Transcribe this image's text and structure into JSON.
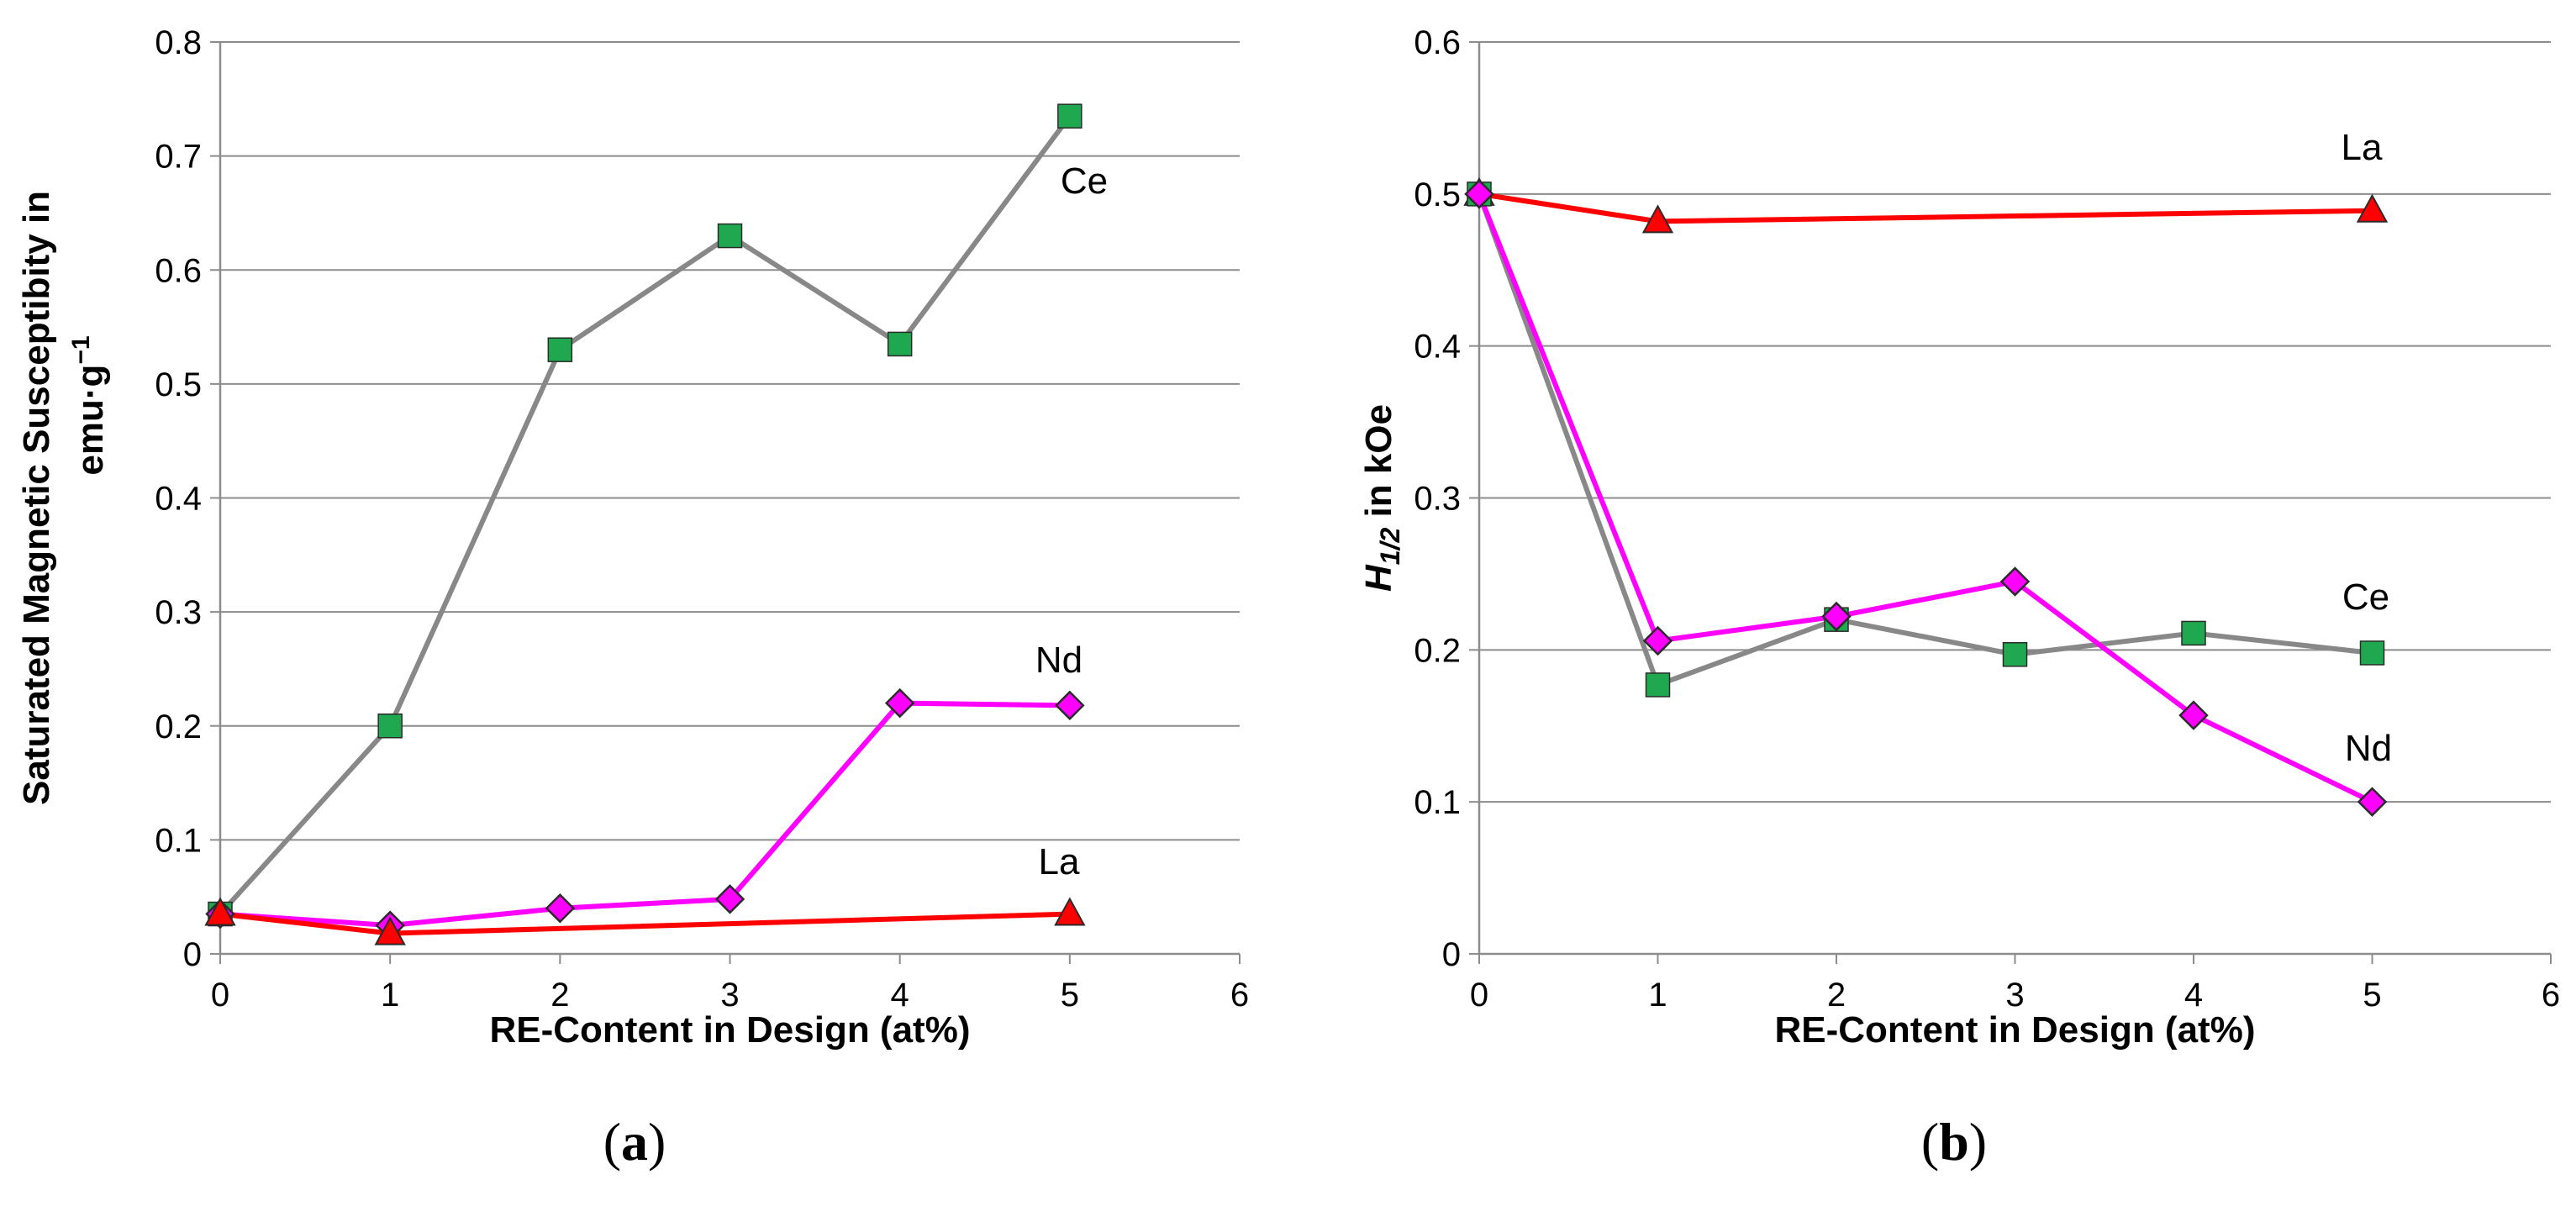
{
  "chart_data": [
    {
      "panel": "(a)",
      "type": "line",
      "xlabel": "RE-Content in Design (at%)",
      "ylabel": "Saturated Magnetic Susceptibity in",
      "ylabel_unit": "emu·g",
      "ylabel_unit_sup": "−1",
      "xlim": [
        0,
        6
      ],
      "ylim": [
        0,
        0.8
      ],
      "xticks": [
        "0",
        "1",
        "2",
        "3",
        "4",
        "5",
        "6"
      ],
      "yticks": [
        "0",
        "0.1",
        "0.2",
        "0.3",
        "0.4",
        "0.5",
        "0.6",
        "0.7",
        "0.8"
      ],
      "grid": "horizontal",
      "series": [
        {
          "name": "Ce",
          "color": "#888888",
          "marker": "square",
          "marker_color": "#1fa84f",
          "x": [
            0,
            1,
            2,
            3,
            4,
            5
          ],
          "y": [
            0.035,
            0.2,
            0.53,
            0.63,
            0.535,
            0.735
          ]
        },
        {
          "name": "Nd",
          "color": "#ff00ff",
          "marker": "diamond",
          "marker_color": "#ff00ff",
          "x": [
            0,
            1,
            2,
            3,
            4,
            5
          ],
          "y": [
            0.035,
            0.025,
            0.04,
            0.048,
            0.22,
            0.218
          ]
        },
        {
          "name": "La",
          "color": "#ff0000",
          "marker": "triangle",
          "marker_color": "#ff0000",
          "x": [
            0,
            1,
            5
          ],
          "y": [
            0.035,
            0.018,
            0.035
          ]
        }
      ]
    },
    {
      "panel": "(b)",
      "type": "line",
      "xlabel": "RE-Content in Design (at%)",
      "ylabel": "H",
      "ylabel_sub": "1/2",
      "ylabel_rest": " in kOe",
      "xlim": [
        0,
        6
      ],
      "ylim": [
        0,
        0.6
      ],
      "xticks": [
        "0",
        "1",
        "2",
        "3",
        "4",
        "5",
        "6"
      ],
      "yticks": [
        "0",
        "0.1",
        "0.2",
        "0.3",
        "0.4",
        "0.5",
        "0.6"
      ],
      "grid": "horizontal",
      "series": [
        {
          "name": "La",
          "color": "#ff0000",
          "marker": "triangle",
          "marker_color": "#ff0000",
          "x": [
            0,
            1,
            5
          ],
          "y": [
            0.5,
            0.482,
            0.489
          ]
        },
        {
          "name": "Ce",
          "color": "#888888",
          "marker": "square",
          "marker_color": "#1fa84f",
          "x": [
            0,
            1,
            2,
            3,
            4,
            5
          ],
          "y": [
            0.5,
            0.177,
            0.22,
            0.197,
            0.211,
            0.198
          ]
        },
        {
          "name": "Nd",
          "color": "#ff00ff",
          "marker": "diamond",
          "marker_color": "#ff00ff",
          "x": [
            0,
            1,
            2,
            3,
            4,
            5
          ],
          "y": [
            0.5,
            0.206,
            0.222,
            0.245,
            0.157,
            0.1
          ]
        }
      ]
    }
  ]
}
